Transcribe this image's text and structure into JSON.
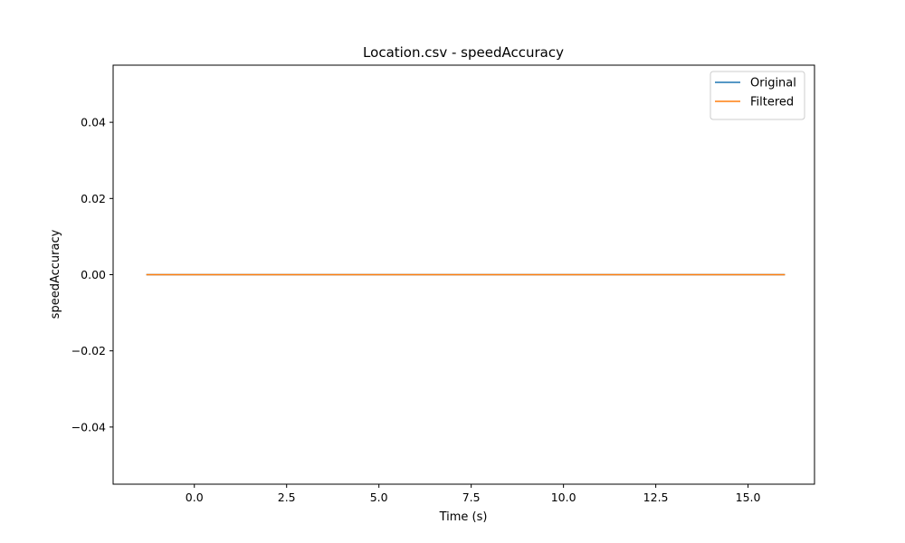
{
  "chart_data": {
    "type": "line",
    "title": "Location.csv - speedAccuracy",
    "xlabel": "Time (s)",
    "ylabel": "speedAccuracy",
    "xlim": [
      -2.2,
      16.8
    ],
    "ylim": [
      -0.055,
      0.055
    ],
    "xticks": [
      0.0,
      2.5,
      5.0,
      7.5,
      10.0,
      12.5,
      15.0
    ],
    "xtick_labels": [
      "0.0",
      "2.5",
      "5.0",
      "7.5",
      "10.0",
      "12.5",
      "15.0"
    ],
    "yticks": [
      -0.04,
      -0.02,
      0.0,
      0.02,
      0.04
    ],
    "ytick_labels": [
      "−0.04",
      "−0.02",
      "0.00",
      "0.02",
      "0.04"
    ],
    "grid": false,
    "legend_position": "top-right",
    "series": [
      {
        "name": "Original",
        "color": "#1f77b4",
        "x": [
          -1.3,
          16.0
        ],
        "y": [
          0.0,
          0.0
        ]
      },
      {
        "name": "Filtered",
        "color": "#ff7f0e",
        "x": [
          -1.3,
          16.0
        ],
        "y": [
          0.0,
          0.0
        ]
      }
    ]
  }
}
